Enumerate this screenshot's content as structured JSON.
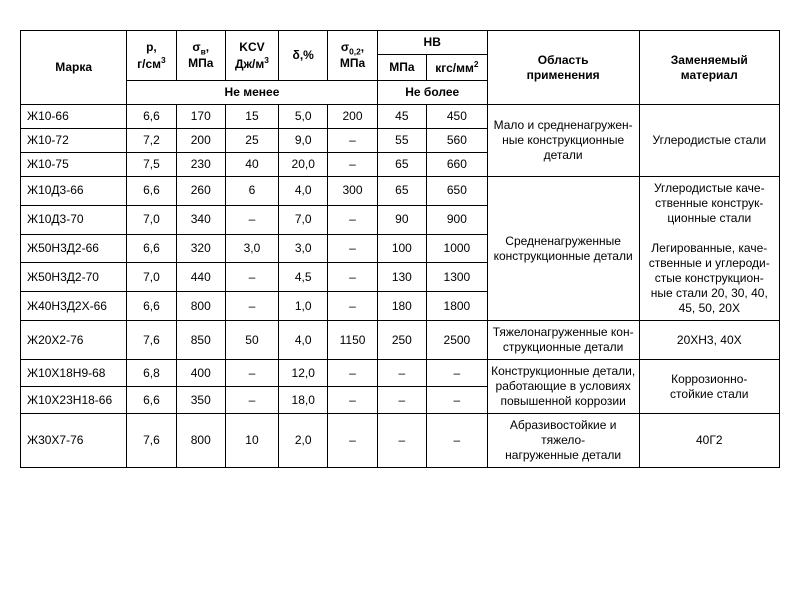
{
  "headers": {
    "marka": "Марка",
    "p": "р,\nг/см³",
    "sigma_v": "σ<sub>в</sub>,\nМПа",
    "kcv": "KCV\nДж/м³",
    "delta": "δ,%",
    "sigma_02": "σ<sub>0,2</sub>,\nМПа",
    "hb": "HB",
    "hb_mpa": "МПа",
    "hb_kgf": "кгс/мм²",
    "not_less": "Не менее",
    "not_more": "Не более",
    "application": "Область\nприменения",
    "replace": "Заменяемый\nматериал"
  },
  "colwidths": [
    "14%",
    "6.5%",
    "6.5%",
    "7%",
    "6.5%",
    "6.5%",
    "6.5%",
    "8%",
    "20%",
    "18.5%"
  ],
  "rows": [
    {
      "marka": "Ж10-66",
      "p": "6,6",
      "sv": "170",
      "kcv": "15",
      "d": "5,0",
      "s02": "200",
      "hb1": "45",
      "hb2": "450"
    },
    {
      "marka": "Ж10-72",
      "p": "7,2",
      "sv": "200",
      "kcv": "25",
      "d": "9,0",
      "s02": "–",
      "hb1": "55",
      "hb2": "560"
    },
    {
      "marka": "Ж10-75",
      "p": "7,5",
      "sv": "230",
      "kcv": "40",
      "d": "20,0",
      "s02": "–",
      "hb1": "65",
      "hb2": "660"
    },
    {
      "marka": "Ж10Д3-66",
      "p": "6,6",
      "sv": "260",
      "kcv": "6",
      "d": "4,0",
      "s02": "300",
      "hb1": "65",
      "hb2": "650"
    },
    {
      "marka": "Ж10Д3-70",
      "p": "7,0",
      "sv": "340",
      "kcv": "–",
      "d": "7,0",
      "s02": "–",
      "hb1": "90",
      "hb2": "900"
    },
    {
      "marka": "Ж50Н3Д2-66",
      "p": "6,6",
      "sv": "320",
      "kcv": "3,0",
      "d": "3,0",
      "s02": "–",
      "hb1": "100",
      "hb2": "1000"
    },
    {
      "marka": "Ж50Н3Д2-70",
      "p": "7,0",
      "sv": "440",
      "kcv": "–",
      "d": "4,5",
      "s02": "–",
      "hb1": "130",
      "hb2": "1300"
    },
    {
      "marka": "Ж40Н3Д2Х-66",
      "p": "6,6",
      "sv": "800",
      "kcv": "–",
      "d": "1,0",
      "s02": "–",
      "hb1": "180",
      "hb2": "1800"
    },
    {
      "marka": "Ж20Х2-76",
      "p": "7,6",
      "sv": "850",
      "kcv": "50",
      "d": "4,0",
      "s02": "1150",
      "hb1": "250",
      "hb2": "2500"
    },
    {
      "marka": "Ж10Х18Н9-68",
      "p": "6,8",
      "sv": "400",
      "kcv": "–",
      "d": "12,0",
      "s02": "–",
      "hb1": "–",
      "hb2": "–"
    },
    {
      "marka": "Ж10Х23Н18-66",
      "p": "6,6",
      "sv": "350",
      "kcv": "–",
      "d": "18,0",
      "s02": "–",
      "hb1": "–",
      "hb2": "–"
    },
    {
      "marka": "Ж30Х7-76",
      "p": "7,6",
      "sv": "800",
      "kcv": "10",
      "d": "2,0",
      "s02": "–",
      "hb1": "–",
      "hb2": "–"
    }
  ],
  "applications": {
    "a1": "Мало и средненагружен-\nные конструкционные\nдетали",
    "a2": "Средненагруженные\nконструкционные детали",
    "a3": "Тяжелонагруженные кон-\nструкционные детали",
    "a4": "Конструкционные детали,\nработающие в условиях\nповышенной коррозии",
    "a5": "Абразивостойкие и тяжело-\nнагруженные детали"
  },
  "replace": {
    "r1": "Углеродистые стали",
    "r2a": "Углеродистые каче-\nственные конструк-\nционные стали",
    "r2b": "Легированные, каче-\nственные и углероди-\nстые конструкцион-\nные стали 20, 30, 40,\n45, 50, 20Х",
    "r3": "20ХН3, 40Х",
    "r4": "Коррозионно-\nстойкие стали",
    "r5": "40Г2"
  }
}
